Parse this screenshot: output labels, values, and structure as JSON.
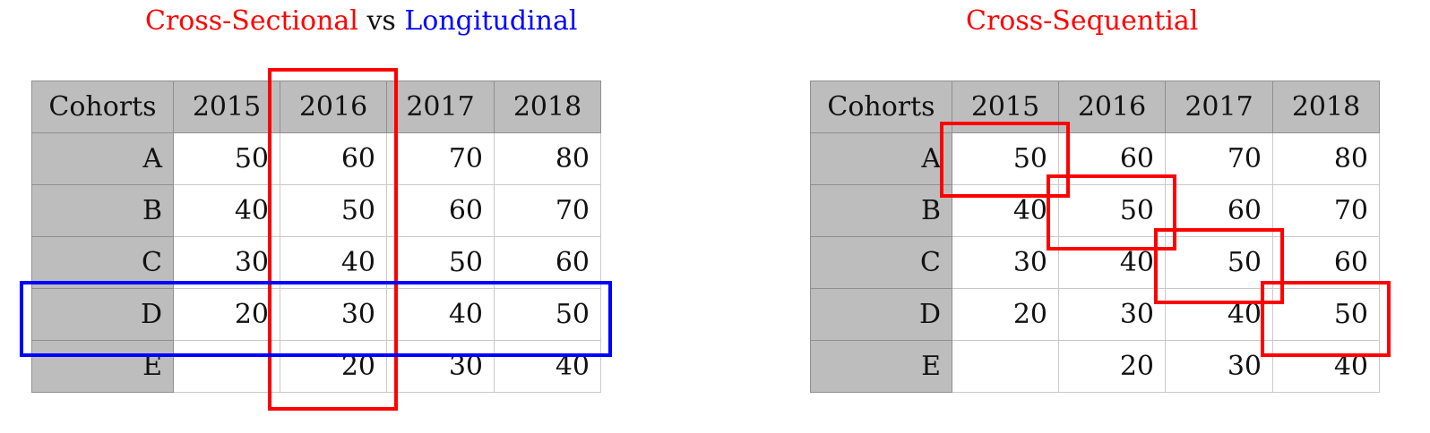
{
  "left": {
    "title_part1": "Cross-Sectional",
    "title_vs": "vs",
    "title_part2": "Longitudinal",
    "headers": [
      "Cohorts",
      "2015",
      "2016",
      "2017",
      "2018"
    ],
    "rows": [
      {
        "cohort": "A",
        "values": [
          "50",
          "60",
          "70",
          "80"
        ]
      },
      {
        "cohort": "B",
        "values": [
          "40",
          "50",
          "60",
          "70"
        ]
      },
      {
        "cohort": "C",
        "values": [
          "30",
          "40",
          "50",
          "60"
        ]
      },
      {
        "cohort": "D",
        "values": [
          "20",
          "30",
          "40",
          "50"
        ]
      },
      {
        "cohort": "E",
        "values": [
          "",
          "20",
          "30",
          "40"
        ]
      }
    ]
  },
  "right": {
    "title": "Cross-Sequential",
    "headers": [
      "Cohorts",
      "2015",
      "2016",
      "2017",
      "2018"
    ],
    "rows": [
      {
        "cohort": "A",
        "values": [
          "50",
          "60",
          "70",
          "80"
        ]
      },
      {
        "cohort": "B",
        "values": [
          "40",
          "50",
          "60",
          "70"
        ]
      },
      {
        "cohort": "C",
        "values": [
          "30",
          "40",
          "50",
          "60"
        ]
      },
      {
        "cohort": "D",
        "values": [
          "20",
          "30",
          "40",
          "50"
        ]
      },
      {
        "cohort": "E",
        "values": [
          "",
          "20",
          "30",
          "40"
        ]
      }
    ]
  },
  "colors": {
    "cross_sectional": "#ff0000",
    "longitudinal": "#0000ff",
    "header_fill": "#bdbdbd"
  }
}
